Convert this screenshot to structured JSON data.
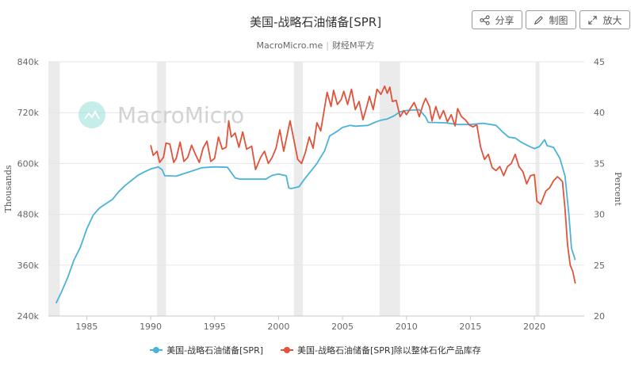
{
  "header": {
    "title": "美国-战略石油储备[SPR]",
    "source": "MacroMicro.me",
    "source_cn": "财经M平方"
  },
  "toolbar": {
    "share_label": "分享",
    "draw_label": "制图",
    "zoom_label": "放大"
  },
  "watermark": {
    "text": "MacroMicro"
  },
  "colors": {
    "series1": "#4bb3d9",
    "series2": "#e0533a",
    "recession": "#ebebeb",
    "grid": "#e6e6e6"
  },
  "chart_data": {
    "type": "line",
    "title": "美国-战略石油储备[SPR]",
    "ylabel_left": "Thousands",
    "ylabel_right": "Percent",
    "x_ticks": [
      "1985",
      "1990",
      "1995",
      "2000",
      "2005",
      "2010",
      "2015",
      "2020"
    ],
    "xlim": [
      1982.0,
      2023.9
    ],
    "y_left_ticks": [
      "240k",
      "360k",
      "480k",
      "600k",
      "720k",
      "840k"
    ],
    "y_left_range": [
      240,
      840
    ],
    "y_right_ticks": [
      "20",
      "25",
      "30",
      "35",
      "40",
      "45"
    ],
    "y_right_range": [
      20,
      45
    ],
    "recession_shading": [
      [
        1981.5,
        1982.9
      ],
      [
        1990.5,
        1991.2
      ],
      [
        2001.2,
        2001.9
      ],
      [
        2007.9,
        2009.5
      ],
      [
        2020.1,
        2020.4
      ]
    ],
    "series": [
      {
        "name": "美国-战略石油储备[SPR]",
        "axis": "left",
        "points": [
          [
            1982.6,
            270
          ],
          [
            1983.0,
            295
          ],
          [
            1983.5,
            330
          ],
          [
            1984.0,
            372
          ],
          [
            1984.5,
            402
          ],
          [
            1985.0,
            445
          ],
          [
            1985.5,
            478
          ],
          [
            1986.0,
            495
          ],
          [
            1986.5,
            505
          ],
          [
            1987.0,
            515
          ],
          [
            1987.5,
            533
          ],
          [
            1988.0,
            548
          ],
          [
            1988.5,
            560
          ],
          [
            1989.0,
            572
          ],
          [
            1989.5,
            580
          ],
          [
            1990.0,
            587
          ],
          [
            1990.6,
            592
          ],
          [
            1990.9,
            585
          ],
          [
            1991.1,
            571
          ],
          [
            1992.0,
            570
          ],
          [
            1993.0,
            580
          ],
          [
            1994.0,
            590
          ],
          [
            1995.0,
            592
          ],
          [
            1996.0,
            591
          ],
          [
            1996.6,
            566
          ],
          [
            1997.0,
            563
          ],
          [
            1998.0,
            563
          ],
          [
            1999.0,
            563
          ],
          [
            1999.5,
            572
          ],
          [
            2000.0,
            575
          ],
          [
            2000.6,
            571
          ],
          [
            2000.8,
            542
          ],
          [
            2001.0,
            541
          ],
          [
            2001.6,
            545
          ],
          [
            2002.0,
            562
          ],
          [
            2003.0,
            600
          ],
          [
            2003.6,
            630
          ],
          [
            2004.0,
            665
          ],
          [
            2004.6,
            676
          ],
          [
            2005.0,
            685
          ],
          [
            2005.6,
            690
          ],
          [
            2006.0,
            688
          ],
          [
            2007.0,
            690
          ],
          [
            2007.6,
            698
          ],
          [
            2008.0,
            702
          ],
          [
            2008.5,
            705
          ],
          [
            2009.0,
            712
          ],
          [
            2009.5,
            722
          ],
          [
            2010.0,
            725
          ],
          [
            2011.0,
            727
          ],
          [
            2011.5,
            710
          ],
          [
            2011.7,
            697
          ],
          [
            2013.0,
            696
          ],
          [
            2014.0,
            692
          ],
          [
            2015.0,
            692
          ],
          [
            2016.0,
            695
          ],
          [
            2017.0,
            690
          ],
          [
            2017.5,
            675
          ],
          [
            2018.0,
            662
          ],
          [
            2018.5,
            660
          ],
          [
            2019.0,
            650
          ],
          [
            2019.5,
            642
          ],
          [
            2020.0,
            635
          ],
          [
            2020.4,
            640
          ],
          [
            2020.8,
            656
          ],
          [
            2021.0,
            642
          ],
          [
            2021.5,
            638
          ],
          [
            2022.0,
            612
          ],
          [
            2022.4,
            570
          ],
          [
            2022.7,
            480
          ],
          [
            2022.9,
            400
          ],
          [
            2023.2,
            372
          ]
        ]
      },
      {
        "name": "美国-战略石油储备[SPR]除以整体石化产品库存",
        "axis": "right",
        "points": [
          [
            1990.0,
            36.8
          ],
          [
            1990.2,
            35.8
          ],
          [
            1990.5,
            36.2
          ],
          [
            1990.7,
            35.1
          ],
          [
            1991.0,
            35.6
          ],
          [
            1991.2,
            37.0
          ],
          [
            1991.5,
            36.9
          ],
          [
            1991.8,
            35.1
          ],
          [
            1992.0,
            35.5
          ],
          [
            1992.3,
            37.1
          ],
          [
            1992.6,
            35.2
          ],
          [
            1992.9,
            35.6
          ],
          [
            1993.2,
            36.8
          ],
          [
            1993.5,
            35.9
          ],
          [
            1993.8,
            35.1
          ],
          [
            1994.1,
            36.5
          ],
          [
            1994.4,
            37.2
          ],
          [
            1994.7,
            35.2
          ],
          [
            1995.0,
            35.5
          ],
          [
            1995.3,
            37.6
          ],
          [
            1995.6,
            36.4
          ],
          [
            1995.9,
            36.6
          ],
          [
            1996.1,
            39.2
          ],
          [
            1996.3,
            37.6
          ],
          [
            1996.6,
            38.0
          ],
          [
            1996.9,
            36.6
          ],
          [
            1997.2,
            38.1
          ],
          [
            1997.5,
            36.4
          ],
          [
            1997.9,
            36.7
          ],
          [
            1998.2,
            34.4
          ],
          [
            1998.6,
            35.6
          ],
          [
            1998.9,
            36.2
          ],
          [
            1999.2,
            35.0
          ],
          [
            1999.5,
            35.6
          ],
          [
            1999.8,
            36.5
          ],
          [
            2000.1,
            38.3
          ],
          [
            2000.4,
            36.2
          ],
          [
            2000.7,
            38.0
          ],
          [
            2000.9,
            39.2
          ],
          [
            2001.2,
            37.3
          ],
          [
            2001.5,
            35.4
          ],
          [
            2001.8,
            35.0
          ],
          [
            2002.1,
            36.1
          ],
          [
            2002.4,
            37.6
          ],
          [
            2002.7,
            36.5
          ],
          [
            2003.0,
            39.0
          ],
          [
            2003.3,
            38.2
          ],
          [
            2003.6,
            40.5
          ],
          [
            2003.8,
            42.0
          ],
          [
            2004.1,
            40.6
          ],
          [
            2004.3,
            42.2
          ],
          [
            2004.6,
            40.8
          ],
          [
            2004.9,
            41.3
          ],
          [
            2005.1,
            42.1
          ],
          [
            2005.4,
            40.8
          ],
          [
            2005.7,
            42.3
          ],
          [
            2006.0,
            40.3
          ],
          [
            2006.3,
            41.1
          ],
          [
            2006.6,
            39.3
          ],
          [
            2006.9,
            40.6
          ],
          [
            2007.1,
            41.6
          ],
          [
            2007.4,
            40.3
          ],
          [
            2007.7,
            42.3
          ],
          [
            2008.0,
            41.8
          ],
          [
            2008.3,
            42.6
          ],
          [
            2008.5,
            41.9
          ],
          [
            2008.7,
            42.5
          ],
          [
            2008.9,
            41.1
          ],
          [
            2009.2,
            41.2
          ],
          [
            2009.5,
            39.6
          ],
          [
            2009.8,
            40.2
          ],
          [
            2010.0,
            39.8
          ],
          [
            2010.3,
            40.4
          ],
          [
            2010.6,
            41.0
          ],
          [
            2010.8,
            40.4
          ],
          [
            2011.0,
            39.6
          ],
          [
            2011.3,
            40.8
          ],
          [
            2011.5,
            41.4
          ],
          [
            2011.8,
            40.6
          ],
          [
            2012.0,
            39.2
          ],
          [
            2012.3,
            40.6
          ],
          [
            2012.6,
            39.4
          ],
          [
            2012.9,
            40.2
          ],
          [
            2013.2,
            39.1
          ],
          [
            2013.5,
            39.8
          ],
          [
            2013.8,
            38.7
          ],
          [
            2014.0,
            40.4
          ],
          [
            2014.3,
            39.6
          ],
          [
            2014.6,
            39.3
          ],
          [
            2014.9,
            38.8
          ],
          [
            2015.2,
            38.6
          ],
          [
            2015.5,
            38.8
          ],
          [
            2015.8,
            36.6
          ],
          [
            2016.1,
            35.4
          ],
          [
            2016.4,
            35.9
          ],
          [
            2016.7,
            34.6
          ],
          [
            2017.0,
            34.3
          ],
          [
            2017.3,
            34.7
          ],
          [
            2017.6,
            33.8
          ],
          [
            2017.9,
            34.7
          ],
          [
            2018.2,
            35.0
          ],
          [
            2018.5,
            35.9
          ],
          [
            2018.8,
            34.7
          ],
          [
            2019.1,
            34.2
          ],
          [
            2019.4,
            33.0
          ],
          [
            2019.7,
            33.8
          ],
          [
            2020.0,
            33.9
          ],
          [
            2020.2,
            31.3
          ],
          [
            2020.5,
            31.0
          ],
          [
            2020.9,
            32.3
          ],
          [
            2021.2,
            32.6
          ],
          [
            2021.5,
            33.3
          ],
          [
            2021.8,
            33.7
          ],
          [
            2022.0,
            33.5
          ],
          [
            2022.2,
            33.2
          ],
          [
            2022.4,
            30.5
          ],
          [
            2022.6,
            27.0
          ],
          [
            2022.8,
            25.0
          ],
          [
            2023.0,
            24.4
          ],
          [
            2023.2,
            23.2
          ]
        ]
      }
    ]
  }
}
